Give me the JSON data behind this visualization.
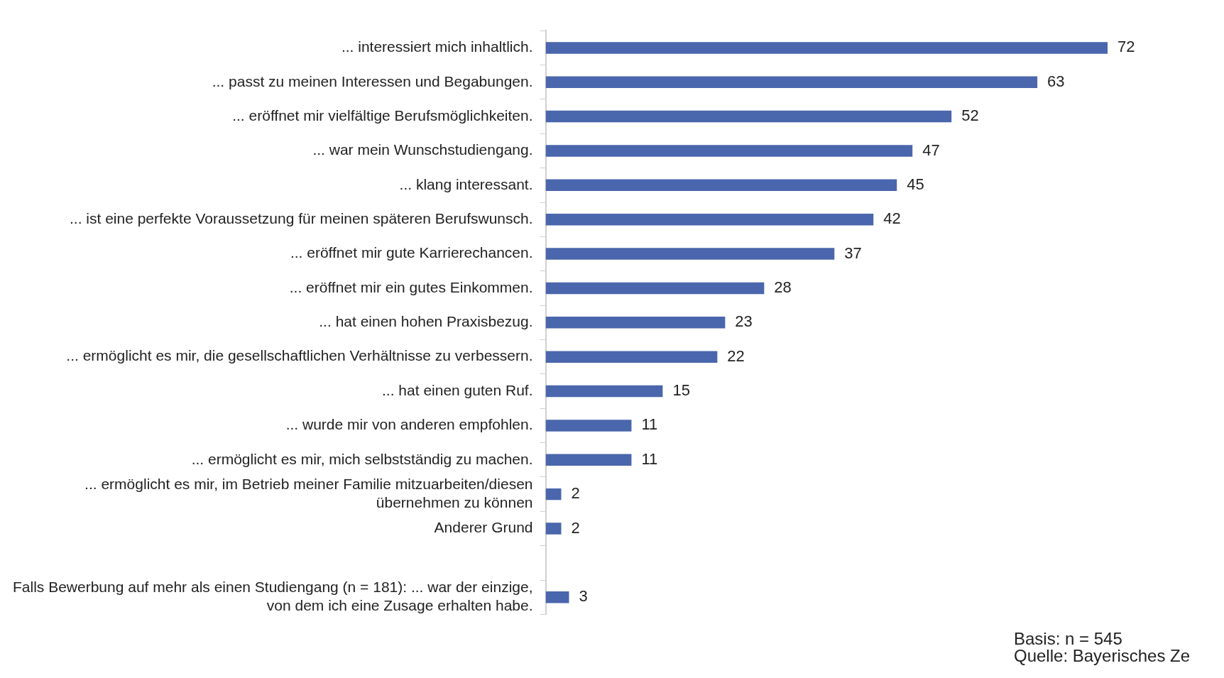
{
  "chart_data": {
    "type": "bar",
    "orientation": "horizontal",
    "data_labels": true,
    "categories": [
      "... interessiert mich inhaltlich.",
      "... passt zu meinen Interessen und Begabungen.",
      "... eröffnet mir vielfältige Berufsmöglichkeiten.",
      "... war mein Wunschstudiengang.",
      "... klang interessant.",
      "... ist eine perfekte Voraussetzung für meinen späteren Berufswunsch.",
      "... eröffnet mir gute Karrierechancen.",
      "... eröffnet mir ein gutes Einkommen.",
      "... hat einen hohen Praxisbezug.",
      "... ermöglicht es mir, die gesellschaftlichen Verhältnisse zu verbessern.",
      "... hat einen guten Ruf.",
      "... wurde mir von anderen empfohlen.",
      "... ermöglicht es mir, mich selbstständig zu machen.",
      "... ermöglicht es mir, im Betrieb meiner Familie mitzuarbeiten/diesen übernehmen zu können",
      "Anderer Grund",
      null,
      "Falls Bewerbung auf mehr als einen Studiengang (n = 181): ... war der einzige, von dem ich eine Zusage erhalten habe."
    ],
    "values": [
      72,
      63,
      52,
      47,
      45,
      42,
      37,
      28,
      23,
      22,
      15,
      11,
      11,
      2,
      2,
      null,
      3
    ],
    "color": "#4a66ac",
    "annotations": [
      "Basis: n = 545",
      "Quelle: Bayerisches Ze"
    ]
  }
}
